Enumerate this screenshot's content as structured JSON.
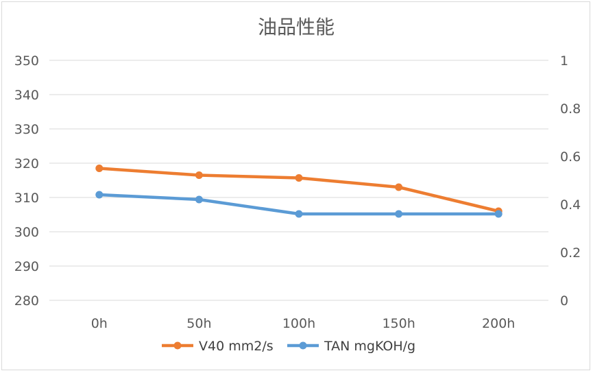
{
  "chart_data": {
    "type": "line",
    "title": "油品性能",
    "categories": [
      "0h",
      "50h",
      "100h",
      "150h",
      "200h"
    ],
    "y_left": {
      "min": 280,
      "max": 350,
      "step": 10,
      "ticks": [
        "280",
        "290",
        "300",
        "310",
        "320",
        "330",
        "340",
        "350"
      ]
    },
    "y_right": {
      "min": 0,
      "max": 1,
      "ticks": [
        "0",
        "0.2",
        "0.4",
        "0.6",
        "0.8",
        "1"
      ]
    },
    "grid": true,
    "legend_position": "bottom",
    "series": [
      {
        "name": "V40 mm2/s",
        "axis": "left",
        "color": "#ED7D31",
        "values": [
          318.5,
          316.5,
          315.7,
          313.0,
          306.0
        ]
      },
      {
        "name": "TAN mgKOH/g",
        "axis": "right",
        "color": "#5B9BD5",
        "values": [
          0.44,
          0.42,
          0.36,
          0.36,
          0.36
        ]
      }
    ]
  }
}
